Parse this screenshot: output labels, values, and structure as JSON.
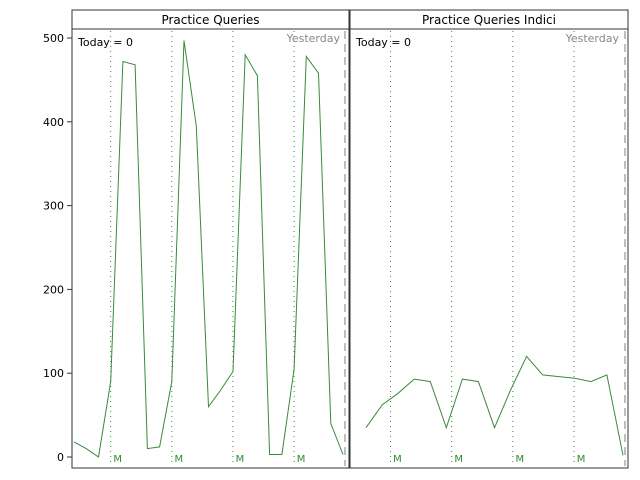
{
  "chart_data": [
    {
      "type": "line",
      "title": "Practice Queries",
      "corner_left": "Today = 0",
      "corner_right": "Yesterday",
      "ylim": [
        0,
        500
      ],
      "yticks": [
        0,
        100,
        200,
        300,
        400,
        500
      ],
      "show_y_axis": true,
      "x": [
        0,
        1,
        2,
        3,
        4,
        5,
        6,
        7,
        8,
        9,
        10,
        11,
        12,
        13,
        14,
        15,
        16,
        17,
        18,
        19,
        20,
        21,
        22
      ],
      "series": [
        {
          "values": [
            18,
            10,
            0,
            90,
            472,
            468,
            10,
            12,
            90,
            497,
            395,
            60,
            80,
            102,
            480,
            455,
            3,
            3,
            105,
            478,
            458,
            40,
            3
          ],
          "color": "#3a8a3a"
        }
      ],
      "monday_marks": [
        {
          "x": 3,
          "label": "M"
        },
        {
          "x": 8,
          "label": "M"
        },
        {
          "x": 13,
          "label": "M"
        },
        {
          "x": 18,
          "label": "M"
        }
      ],
      "yesterday_x": 22
    },
    {
      "type": "line",
      "title": "Practice Queries Indici",
      "corner_left": "Today = 0",
      "corner_right": "Yesterday",
      "ylim": [
        0,
        500
      ],
      "yticks": [
        0,
        100,
        200,
        300,
        400,
        500
      ],
      "show_y_axis": false,
      "x": [
        0,
        1,
        2,
        3,
        4,
        5,
        6,
        7,
        8,
        9,
        10,
        11,
        12,
        13,
        14,
        15,
        16,
        17,
        18,
        19,
        20,
        21
      ],
      "series": [
        {
          "values": [
            35,
            62,
            76,
            93,
            90,
            35,
            93,
            90,
            35,
            80,
            120,
            98,
            96,
            94,
            90,
            98,
            2,
            0,
            0,
            0,
            0,
            0
          ],
          "color": "#3a8a3a"
        }
      ],
      "monday_marks": [
        {
          "x": 2,
          "label": "M"
        },
        {
          "x": 7,
          "label": "M"
        },
        {
          "x": 12,
          "label": "M"
        },
        {
          "x": 17,
          "label": "M"
        }
      ],
      "yesterday_x": 21
    }
  ]
}
